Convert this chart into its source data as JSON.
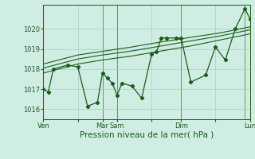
{
  "bg_color": "#d0ede4",
  "grid_color": "#a8cfc0",
  "line_color": "#1a5c1a",
  "marker_color": "#1a5c1a",
  "xlabel": "Pression niveau de la mer( hPa )",
  "xlabel_fontsize": 7.5,
  "ylim": [
    1015.5,
    1021.2
  ],
  "yticks": [
    1016,
    1017,
    1018,
    1019,
    1020
  ],
  "xtick_labels": [
    "Ven",
    "",
    "Mar",
    "Sam",
    "",
    "Dim",
    "",
    "Lun"
  ],
  "xtick_positions": [
    0.0,
    0.167,
    0.286,
    0.357,
    0.524,
    0.667,
    0.833,
    1.0
  ],
  "day_vlines": [
    0.0,
    0.286,
    0.357,
    0.667,
    0.976
  ],
  "series1_x": [
    0.0,
    0.024,
    0.048,
    0.119,
    0.167,
    0.214,
    0.262,
    0.286,
    0.31,
    0.333,
    0.357,
    0.381,
    0.429,
    0.476,
    0.524,
    0.548,
    0.571,
    0.595,
    0.643,
    0.667,
    0.714,
    0.786,
    0.833,
    0.881,
    0.929,
    0.976,
    1.0
  ],
  "series1_y": [
    1017.0,
    1016.85,
    1018.0,
    1018.2,
    1018.1,
    1016.15,
    1016.35,
    1017.8,
    1017.55,
    1017.3,
    1016.7,
    1017.3,
    1017.15,
    1016.55,
    1018.75,
    1018.85,
    1019.55,
    1019.55,
    1019.55,
    1019.55,
    1017.35,
    1017.7,
    1019.1,
    1018.45,
    1020.0,
    1021.0,
    1020.5
  ],
  "series2_x": [
    0.0,
    0.167,
    0.286,
    0.429,
    0.571,
    0.714,
    0.857,
    1.0
  ],
  "series2_y": [
    1017.8,
    1018.25,
    1018.45,
    1018.65,
    1018.9,
    1019.15,
    1019.45,
    1019.75
  ],
  "series3_x": [
    0.0,
    0.167,
    0.286,
    0.429,
    0.571,
    0.714,
    0.857,
    1.0
  ],
  "series3_y": [
    1018.05,
    1018.5,
    1018.7,
    1018.9,
    1019.15,
    1019.4,
    1019.65,
    1019.95
  ],
  "series4_x": [
    0.0,
    0.167,
    0.286,
    0.429,
    0.571,
    0.714,
    0.857,
    1.0
  ],
  "series4_y": [
    1018.25,
    1018.7,
    1018.88,
    1019.1,
    1019.35,
    1019.58,
    1019.8,
    1020.1
  ]
}
